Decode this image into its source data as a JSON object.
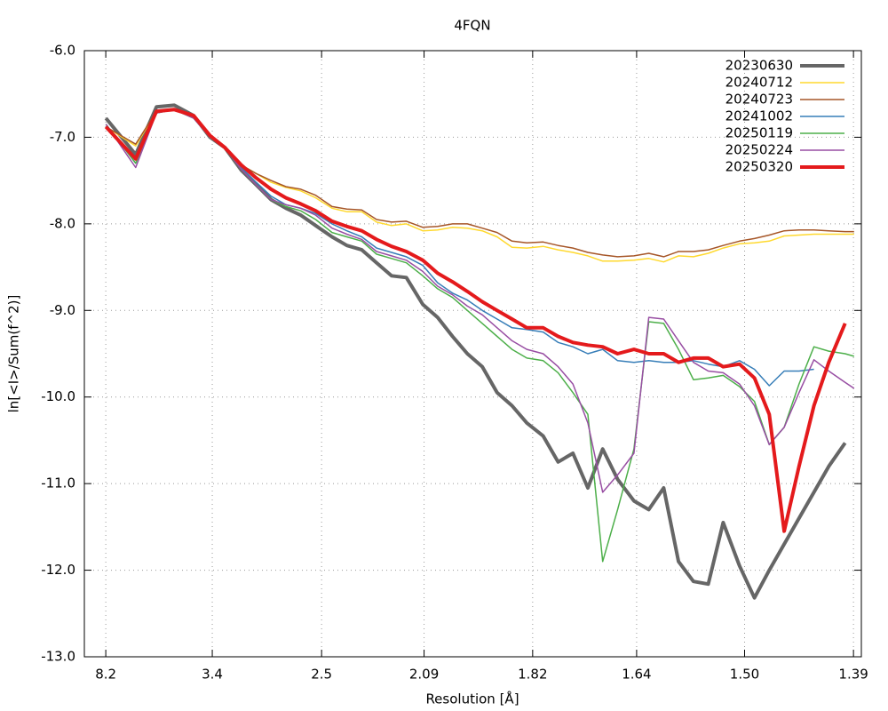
{
  "chart_data": {
    "type": "line",
    "title": "4FQN",
    "x_label": "Resolution [Å]",
    "y_label": "ln[<I>/Sum(f^2)]",
    "xlim": [
      0.0005,
      0.5229
    ],
    "xticks": [
      {
        "value": 0.0149,
        "label": "8.2"
      },
      {
        "value": 0.0865,
        "label": "3.4"
      },
      {
        "value": 0.16,
        "label": "2.5"
      },
      {
        "value": 0.2289,
        "label": "2.09"
      },
      {
        "value": 0.3019,
        "label": "1.82"
      },
      {
        "value": 0.3718,
        "label": "1.64"
      },
      {
        "value": 0.4444,
        "label": "1.50"
      },
      {
        "value": 0.5176,
        "label": "1.39"
      }
    ],
    "ylim": [
      -13,
      -6
    ],
    "yticks": [
      {
        "value": -13,
        "label": "-13.0"
      },
      {
        "value": -12,
        "label": "-12.0"
      },
      {
        "value": -11,
        "label": "-11.0"
      },
      {
        "value": -10,
        "label": "-10.0"
      },
      {
        "value": -9,
        "label": "-9.0"
      },
      {
        "value": -8,
        "label": "-8.0"
      },
      {
        "value": -7,
        "label": "-7.0"
      },
      {
        "value": -6,
        "label": "-6.0"
      }
    ],
    "grid": true,
    "legend": "top-right",
    "x": [
      0.015,
      0.035,
      0.049,
      0.061,
      0.074,
      0.085,
      0.095,
      0.106,
      0.116,
      0.126,
      0.136,
      0.146,
      0.156,
      0.167,
      0.177,
      0.187,
      0.197,
      0.207,
      0.217,
      0.228,
      0.238,
      0.248,
      0.258,
      0.268,
      0.278,
      0.288,
      0.298,
      0.309,
      0.319,
      0.329,
      0.339,
      0.349,
      0.359,
      0.37,
      0.38,
      0.39,
      0.4,
      0.41,
      0.42,
      0.43,
      0.441,
      0.451,
      0.461,
      0.471,
      0.481,
      0.491,
      0.501,
      0.512,
      0.518
    ],
    "series": [
      {
        "name": "20230630",
        "color": "#666666",
        "width": 4,
        "values": [
          -6.78,
          -7.2,
          -6.65,
          -6.63,
          -6.75,
          -7.0,
          -7.12,
          -7.38,
          -7.55,
          -7.72,
          -7.82,
          -7.9,
          -8.02,
          -8.15,
          -8.25,
          -8.3,
          -8.45,
          -8.6,
          -8.62,
          -8.93,
          -9.08,
          -9.3,
          -9.5,
          -9.65,
          -9.95,
          -10.1,
          -10.3,
          -10.45,
          -10.75,
          -10.65,
          -11.05,
          -10.6,
          -10.95,
          -11.2,
          -11.3,
          -11.05,
          -11.9,
          -12.13,
          -12.16,
          -11.45,
          -11.95,
          -12.32,
          -12.0,
          -11.7,
          -11.4,
          -11.1,
          -10.8,
          -10.53,
          null
        ]
      },
      {
        "name": "20240712",
        "color": "#ffd92f",
        "width": 1.5,
        "values": [
          -6.88,
          -7.1,
          -6.7,
          -6.68,
          -6.78,
          -6.98,
          -7.12,
          -7.32,
          -7.42,
          -7.52,
          -7.58,
          -7.62,
          -7.7,
          -7.82,
          -7.86,
          -7.86,
          -7.98,
          -8.02,
          -8.0,
          -8.08,
          -8.07,
          -8.04,
          -8.05,
          -8.08,
          -8.15,
          -8.27,
          -8.28,
          -8.26,
          -8.3,
          -8.33,
          -8.37,
          -8.43,
          -8.43,
          -8.42,
          -8.4,
          -8.44,
          -8.37,
          -8.38,
          -8.34,
          -8.28,
          -8.23,
          -8.22,
          -8.2,
          -8.14,
          -8.13,
          -8.12,
          -8.12,
          -8.12,
          -8.12
        ]
      },
      {
        "name": "20240723",
        "color": "#a65628",
        "width": 1.5,
        "values": [
          -6.88,
          -7.08,
          -6.7,
          -6.68,
          -6.78,
          -6.98,
          -7.12,
          -7.32,
          -7.42,
          -7.5,
          -7.57,
          -7.6,
          -7.67,
          -7.8,
          -7.83,
          -7.84,
          -7.95,
          -7.98,
          -7.97,
          -8.04,
          -8.03,
          -8.0,
          -8.0,
          -8.05,
          -8.1,
          -8.2,
          -8.22,
          -8.21,
          -8.25,
          -8.28,
          -8.33,
          -8.36,
          -8.38,
          -8.37,
          -8.34,
          -8.38,
          -8.32,
          -8.32,
          -8.3,
          -8.25,
          -8.2,
          -8.17,
          -8.13,
          -8.08,
          -8.07,
          -8.07,
          -8.08,
          -8.09,
          -8.09
        ]
      },
      {
        "name": "20241002",
        "color": "#377eb8",
        "width": 1.5,
        "values": [
          -6.85,
          -7.3,
          -6.72,
          -6.68,
          -6.78,
          -7.0,
          -7.12,
          -7.35,
          -7.52,
          -7.68,
          -7.78,
          -7.82,
          -7.88,
          -8.0,
          -8.08,
          -8.15,
          -8.28,
          -8.33,
          -8.38,
          -8.48,
          -8.68,
          -8.8,
          -8.88,
          -9.0,
          -9.1,
          -9.2,
          -9.22,
          -9.25,
          -9.37,
          -9.42,
          -9.5,
          -9.45,
          -9.58,
          -9.6,
          -9.58,
          -9.6,
          -9.6,
          -9.58,
          -9.62,
          -9.65,
          -9.58,
          -9.68,
          -9.87,
          -9.7,
          -9.7,
          -9.68,
          null,
          null,
          null
        ]
      },
      {
        "name": "20250119",
        "color": "#4daf4a",
        "width": 1.5,
        "values": [
          -6.85,
          -7.3,
          -6.72,
          -6.68,
          -6.78,
          -7.0,
          -7.12,
          -7.37,
          -7.55,
          -7.72,
          -7.8,
          -7.85,
          -7.95,
          -8.1,
          -8.15,
          -8.2,
          -8.35,
          -8.4,
          -8.45,
          -8.6,
          -8.75,
          -8.85,
          -9.0,
          -9.15,
          -9.3,
          -9.45,
          -9.55,
          -9.58,
          -9.72,
          -9.95,
          -10.2,
          -11.9,
          -11.3,
          -10.6,
          -9.13,
          -9.15,
          -9.45,
          -9.8,
          -9.78,
          -9.75,
          -9.88,
          -10.05,
          -10.55,
          -10.35,
          -9.85,
          -9.42,
          -9.47,
          -9.5,
          -9.53
        ]
      },
      {
        "name": "20250224",
        "color": "#984ea3",
        "width": 1.5,
        "values": [
          -6.85,
          -7.35,
          -6.72,
          -6.68,
          -6.78,
          -7.0,
          -7.12,
          -7.37,
          -7.55,
          -7.72,
          -7.78,
          -7.82,
          -7.9,
          -8.05,
          -8.12,
          -8.18,
          -8.32,
          -8.37,
          -8.42,
          -8.55,
          -8.72,
          -8.82,
          -8.95,
          -9.05,
          -9.2,
          -9.35,
          -9.45,
          -9.5,
          -9.65,
          -9.85,
          -10.3,
          -11.1,
          -10.9,
          -10.65,
          -9.08,
          -9.1,
          -9.35,
          -9.6,
          -9.7,
          -9.72,
          -9.85,
          -10.1,
          -10.55,
          -10.35,
          -9.95,
          -9.57,
          -9.7,
          -9.83,
          -9.9
        ]
      },
      {
        "name": "20250320",
        "color": "#e41a1c",
        "width": 4,
        "values": [
          -6.88,
          -7.25,
          -6.7,
          -6.68,
          -6.75,
          -6.98,
          -7.12,
          -7.32,
          -7.47,
          -7.6,
          -7.7,
          -7.77,
          -7.85,
          -7.97,
          -8.03,
          -8.08,
          -8.18,
          -8.26,
          -8.32,
          -8.42,
          -8.57,
          -8.67,
          -8.78,
          -8.9,
          -9.0,
          -9.1,
          -9.2,
          -9.2,
          -9.3,
          -9.37,
          -9.4,
          -9.42,
          -9.5,
          -9.45,
          -9.5,
          -9.5,
          -9.6,
          -9.55,
          -9.55,
          -9.65,
          -9.62,
          -9.78,
          -10.2,
          -11.55,
          -10.8,
          -10.1,
          -9.6,
          -9.15,
          null
        ]
      }
    ]
  }
}
